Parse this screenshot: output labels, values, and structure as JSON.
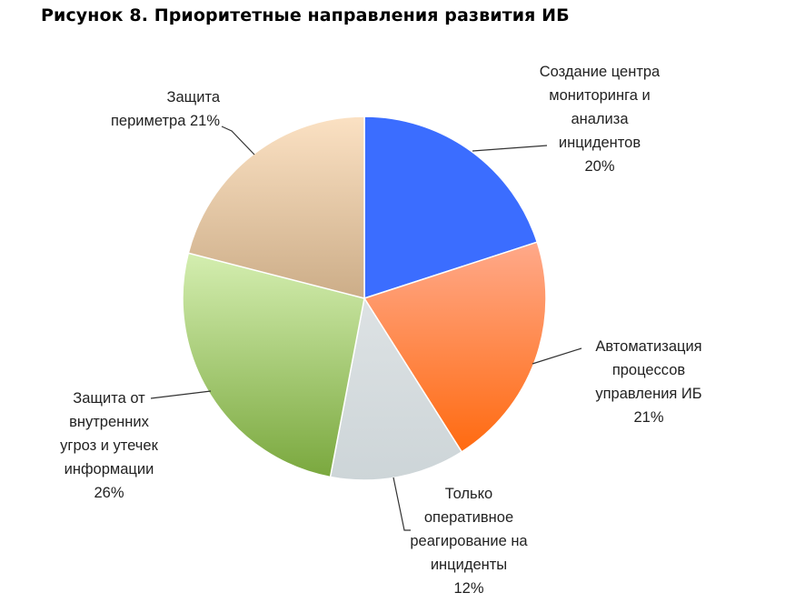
{
  "title": "Рисунок 8. Приоритетные направления развития ИБ",
  "chart_data": {
    "type": "pie",
    "title": "Рисунок 8. Приоритетные направления развития ИБ",
    "slices": [
      {
        "label_lines": [
          "Создание центра",
          "мониторинга и",
          "анализа",
          "инцидентов"
        ],
        "percent_text": "20%",
        "value": 20,
        "color_top": "#3b6dff",
        "color_bottom": "#3b6dff"
      },
      {
        "label_lines": [
          "Автоматизация",
          "процессов",
          "управления ИБ"
        ],
        "percent_text": "21%",
        "value": 21,
        "color_top": "#ffa98a",
        "color_bottom": "#ff6a10"
      },
      {
        "label_lines": [
          "Только",
          "оперативное",
          "реагирование на",
          "инциденты"
        ],
        "percent_text": "12%",
        "value": 12,
        "color_top": "#dde2e4",
        "color_bottom": "#cdd5d8"
      },
      {
        "label_lines": [
          "Защита от",
          "внутренних",
          "угроз и утечек",
          "информации"
        ],
        "percent_text": "26%",
        "value": 26,
        "color_top": "#d4eeb0",
        "color_bottom": "#7aa83e"
      },
      {
        "label_lines": [
          "Защита",
          "периметра"
        ],
        "percent_text": "21%",
        "value": 21,
        "color_top": "#fbe1c3",
        "color_bottom": "#ccad88"
      }
    ]
  }
}
